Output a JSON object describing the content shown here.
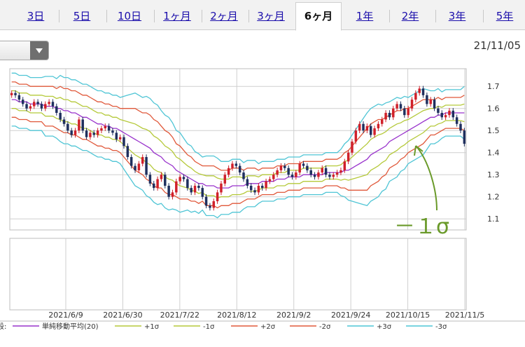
{
  "tabs": [
    {
      "label": "3日",
      "active": false
    },
    {
      "label": "5日",
      "active": false
    },
    {
      "label": "10日",
      "active": false
    },
    {
      "label": "1ヶ月",
      "active": false
    },
    {
      "label": "2ヶ月",
      "active": false
    },
    {
      "label": "3ヶ月",
      "active": false
    },
    {
      "label": "6ヶ月",
      "active": true
    },
    {
      "label": "1年",
      "active": false
    },
    {
      "label": "2年",
      "active": false
    },
    {
      "label": "3年",
      "active": false
    },
    {
      "label": "5年",
      "active": false
    }
  ],
  "header": {
    "date": "21/11/05"
  },
  "annotation": {
    "text": "－１σ",
    "color": "#6a9a2a"
  },
  "chart_data": {
    "type": "candlestick",
    "y_ticks": [
      1.1,
      1.2,
      1.3,
      1.4,
      1.5,
      1.6,
      1.7
    ],
    "ylim": [
      1.05,
      1.78
    ],
    "x_ticks": [
      "2021/6/9",
      "2021/6/30",
      "2021/7/22",
      "2021/8/12",
      "2021/9/2",
      "2021/9/24",
      "2021/10/15",
      "2021/11/5"
    ],
    "grid": true,
    "colors": {
      "up": "#d0202a",
      "down": "#1f2f5e"
    },
    "legend_lead": "段:",
    "legend": [
      {
        "label": "単純移動平均(20)",
        "color": "#9933cc"
      },
      {
        "label": "+1σ",
        "color": "#b5c93a"
      },
      {
        "label": "-1σ",
        "color": "#b5c93a"
      },
      {
        "label": "+2σ",
        "color": "#e0583a"
      },
      {
        "label": "-2σ",
        "color": "#e0583a"
      },
      {
        "label": "+3σ",
        "color": "#4fc5d5"
      },
      {
        "label": "-3σ",
        "color": "#4fc5d5"
      }
    ],
    "close": [
      1.67,
      1.66,
      1.64,
      1.62,
      1.6,
      1.61,
      1.63,
      1.62,
      1.6,
      1.62,
      1.63,
      1.61,
      1.58,
      1.55,
      1.53,
      1.5,
      1.48,
      1.5,
      1.55,
      1.5,
      1.47,
      1.49,
      1.48,
      1.5,
      1.51,
      1.52,
      1.5,
      1.49,
      1.46,
      1.47,
      1.43,
      1.38,
      1.34,
      1.32,
      1.35,
      1.38,
      1.3,
      1.26,
      1.24,
      1.28,
      1.3,
      1.25,
      1.2,
      1.22,
      1.27,
      1.29,
      1.28,
      1.24,
      1.22,
      1.25,
      1.24,
      1.2,
      1.16,
      1.15,
      1.18,
      1.22,
      1.26,
      1.3,
      1.33,
      1.35,
      1.34,
      1.31,
      1.28,
      1.25,
      1.23,
      1.22,
      1.25,
      1.24,
      1.27,
      1.28,
      1.3,
      1.32,
      1.34,
      1.33,
      1.3,
      1.29,
      1.31,
      1.35,
      1.34,
      1.32,
      1.3,
      1.29,
      1.31,
      1.33,
      1.3,
      1.29,
      1.3,
      1.31,
      1.32,
      1.36,
      1.4,
      1.45,
      1.5,
      1.53,
      1.5,
      1.52,
      1.48,
      1.51,
      1.53,
      1.55,
      1.58,
      1.56,
      1.6,
      1.62,
      1.6,
      1.57,
      1.6,
      1.64,
      1.67,
      1.69,
      1.66,
      1.62,
      1.64,
      1.6,
      1.58,
      1.56,
      1.57,
      1.59,
      1.56,
      1.53,
      1.5,
      1.44
    ],
    "sma20": [
      1.64,
      1.64,
      1.63,
      1.63,
      1.63,
      1.62,
      1.62,
      1.62,
      1.62,
      1.61,
      1.61,
      1.61,
      1.6,
      1.6,
      1.59,
      1.59,
      1.58,
      1.58,
      1.57,
      1.56,
      1.56,
      1.55,
      1.54,
      1.53,
      1.53,
      1.52,
      1.52,
      1.51,
      1.51,
      1.5,
      1.49,
      1.48,
      1.47,
      1.46,
      1.45,
      1.44,
      1.43,
      1.42,
      1.4,
      1.39,
      1.38,
      1.36,
      1.35,
      1.34,
      1.32,
      1.31,
      1.3,
      1.29,
      1.28,
      1.27,
      1.26,
      1.26,
      1.25,
      1.25,
      1.25,
      1.24,
      1.24,
      1.24,
      1.24,
      1.25,
      1.25,
      1.25,
      1.25,
      1.26,
      1.26,
      1.26,
      1.26,
      1.27,
      1.27,
      1.27,
      1.27,
      1.28,
      1.28,
      1.28,
      1.29,
      1.29,
      1.29,
      1.29,
      1.3,
      1.3,
      1.3,
      1.3,
      1.3,
      1.3,
      1.31,
      1.31,
      1.31,
      1.31,
      1.31,
      1.32,
      1.32,
      1.33,
      1.34,
      1.35,
      1.36,
      1.37,
      1.39,
      1.4,
      1.41,
      1.42,
      1.43,
      1.45,
      1.46,
      1.47,
      1.48,
      1.49,
      1.5,
      1.51,
      1.52,
      1.53,
      1.54,
      1.55,
      1.56,
      1.56,
      1.57,
      1.57,
      1.58,
      1.58,
      1.58,
      1.58,
      1.58,
      1.58
    ],
    "sigma": [
      0.04,
      0.04,
      0.04,
      0.04,
      0.04,
      0.04,
      0.04,
      0.04,
      0.04,
      0.045,
      0.045,
      0.045,
      0.045,
      0.05,
      0.05,
      0.05,
      0.05,
      0.05,
      0.05,
      0.05,
      0.05,
      0.05,
      0.05,
      0.05,
      0.05,
      0.05,
      0.05,
      0.05,
      0.05,
      0.05,
      0.055,
      0.06,
      0.065,
      0.07,
      0.07,
      0.07,
      0.075,
      0.075,
      0.075,
      0.075,
      0.07,
      0.07,
      0.07,
      0.065,
      0.06,
      0.06,
      0.055,
      0.05,
      0.05,
      0.045,
      0.045,
      0.04,
      0.045,
      0.045,
      0.045,
      0.045,
      0.04,
      0.04,
      0.04,
      0.04,
      0.04,
      0.04,
      0.035,
      0.035,
      0.035,
      0.035,
      0.03,
      0.03,
      0.03,
      0.03,
      0.03,
      0.03,
      0.03,
      0.03,
      0.03,
      0.03,
      0.03,
      0.03,
      0.03,
      0.03,
      0.03,
      0.03,
      0.03,
      0.03,
      0.03,
      0.03,
      0.03,
      0.03,
      0.035,
      0.04,
      0.045,
      0.05,
      0.055,
      0.06,
      0.065,
      0.07,
      0.07,
      0.07,
      0.07,
      0.065,
      0.065,
      0.06,
      0.06,
      0.06,
      0.055,
      0.055,
      0.05,
      0.05,
      0.05,
      0.05,
      0.05,
      0.045,
      0.04,
      0.04,
      0.04,
      0.035,
      0.035,
      0.035,
      0.035,
      0.035,
      0.035,
      0.04
    ]
  }
}
